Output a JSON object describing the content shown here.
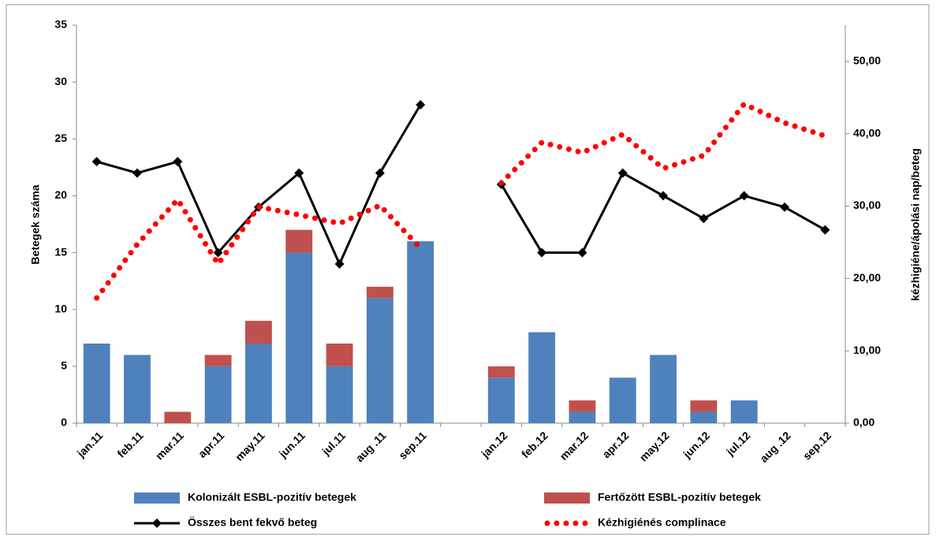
{
  "chart_data": {
    "type": "bar-line",
    "y_label": "Betegek száma",
    "y2_label": "kézhigiéne/ápolási nap/beteg",
    "categories": [
      "jan.11",
      "feb.11",
      "mar.11",
      "apr.11",
      "may.11",
      "jun.11",
      "jul.11",
      "aug .11",
      "sep.11",
      null,
      "jan.12",
      "feb.12",
      "mar.12",
      "apr.12",
      "may.12",
      "jun.12",
      "jul.12",
      "aug .12",
      "sep.12"
    ],
    "ylim": [
      0,
      35
    ],
    "yticks": [
      0,
      5,
      10,
      15,
      20,
      25,
      30,
      35
    ],
    "y2lim": [
      0,
      55
    ],
    "y2ticks": [
      {
        "value": 0,
        "label": "0,00"
      },
      {
        "value": 10,
        "label": "10,00"
      },
      {
        "value": 20,
        "label": "20,00"
      },
      {
        "value": 30,
        "label": "30,00"
      },
      {
        "value": 40,
        "label": "40,00"
      },
      {
        "value": 50,
        "label": "50,00"
      }
    ],
    "series": [
      {
        "name": "Kolonizált ESBL-pozitív betegek",
        "kind": "stacked-bar",
        "color": "#4f81bd",
        "values": [
          7,
          6,
          0,
          5,
          7,
          15,
          5,
          11,
          16,
          null,
          4,
          8,
          1,
          4,
          6,
          1,
          2,
          0,
          0
        ]
      },
      {
        "name": "Fertőzött ESBL-pozitív betegek",
        "kind": "stacked-bar",
        "color": "#c0504d",
        "values": [
          0,
          0,
          1,
          1,
          2,
          2,
          2,
          1,
          0,
          null,
          1,
          0,
          1,
          0,
          0,
          1,
          0,
          0,
          0
        ]
      },
      {
        "name": "Összes bent fekvő beteg",
        "kind": "line",
        "color": "#000000",
        "values": [
          23,
          22,
          23,
          15,
          19,
          22,
          14,
          22,
          28,
          null,
          21,
          15,
          15,
          22,
          20,
          18,
          20,
          19,
          17
        ]
      },
      {
        "name": "Kézhigiénés complinace",
        "kind": "dotted-line",
        "color": "#ff0000",
        "axis": "y2",
        "values": [
          17.3,
          24.7,
          30.9,
          22.0,
          29.9,
          28.8,
          27.6,
          30.1,
          24.2,
          null,
          33.2,
          38.8,
          37.4,
          39.9,
          35.2,
          37.0,
          44.1,
          41.5,
          39.7
        ]
      }
    ]
  }
}
